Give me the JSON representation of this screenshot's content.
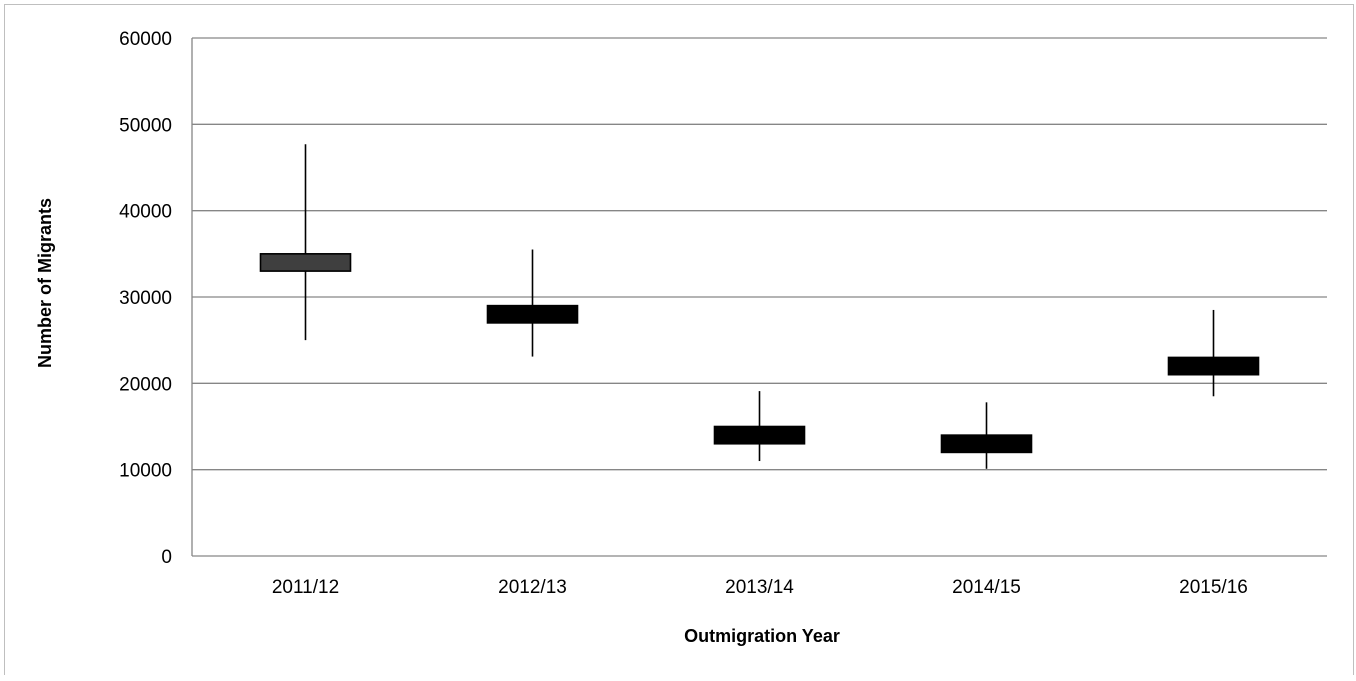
{
  "chart_data": {
    "type": "candlestick",
    "title": "",
    "xlabel": "Outmigration Year",
    "ylabel": "Number of Migrants",
    "ylim": [
      0,
      60000
    ],
    "yticks": [
      0,
      10000,
      20000,
      30000,
      40000,
      50000,
      60000
    ],
    "grid": true,
    "legend": "none",
    "categories": [
      "2011/12",
      "2012/13",
      "2013/14",
      "2014/15",
      "2015/16"
    ],
    "series": [
      {
        "low": [
          25000,
          23100,
          11000,
          10100,
          18500
        ],
        "high": [
          47700,
          35500,
          19100,
          17800,
          28500
        ],
        "box_low": [
          33000,
          27000,
          13000,
          12000,
          21000
        ],
        "box_high": [
          35000,
          29000,
          15000,
          14000,
          23000
        ]
      }
    ],
    "colors": {
      "box_first": "#3f3f3f",
      "box_rest": "#000000",
      "grid": "#868686",
      "axis": "#868686"
    }
  }
}
